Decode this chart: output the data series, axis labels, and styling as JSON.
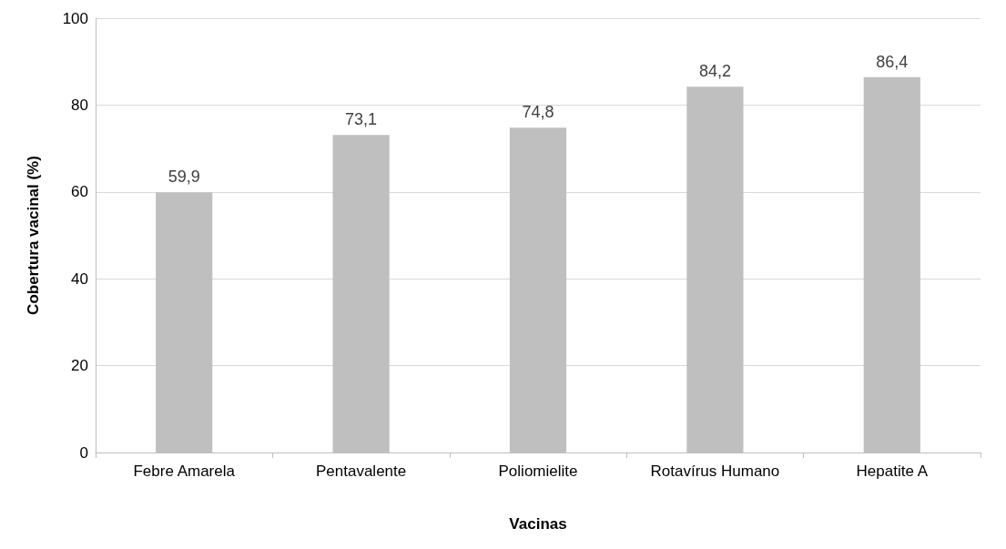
{
  "chart_data": {
    "type": "bar",
    "xlabel": "Vacinas",
    "ylabel": "Cobertura vacinal (%)",
    "categories": [
      "Febre Amarela",
      "Pentavalente",
      "Poliomielite",
      "Rotavírus Humano",
      "Hepatite A"
    ],
    "values": [
      59.9,
      73.1,
      74.8,
      84.2,
      86.4
    ],
    "value_labels": [
      "59,9",
      "73,1",
      "74,8",
      "84,2",
      "86,4"
    ],
    "color": "#bfbfbf",
    "ylim": [
      0,
      100
    ],
    "yticks": [
      0,
      20,
      40,
      60,
      80,
      100
    ],
    "grid": "y"
  }
}
